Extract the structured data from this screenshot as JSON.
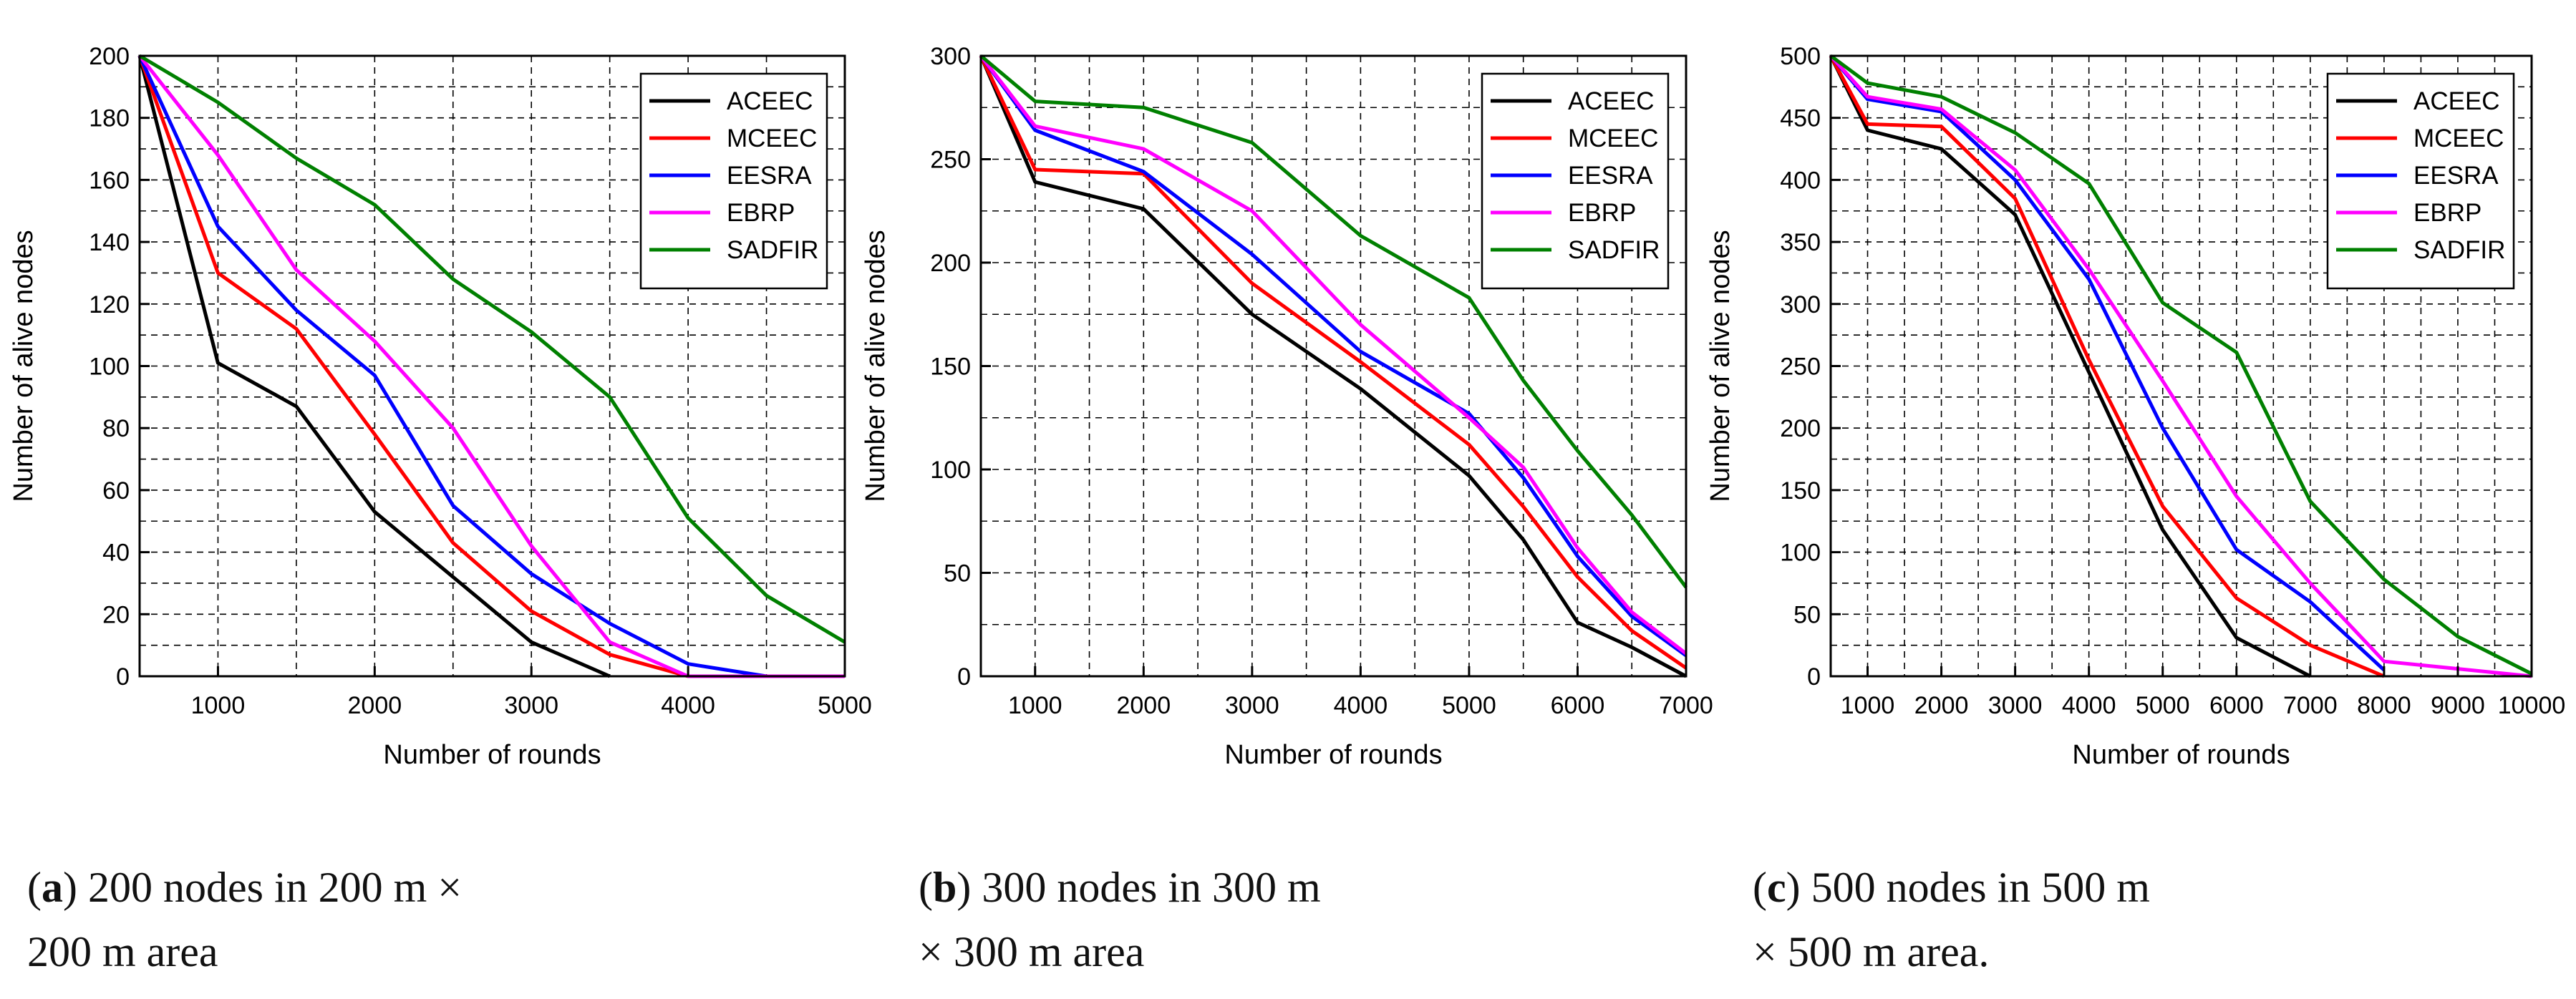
{
  "figure": {
    "panels": [
      {
        "caption": {
          "letter": "a",
          "line1": "200 nodes in 200 m ×",
          "line2": "200 m area"
        },
        "chart_data": {
          "type": "line",
          "title": "",
          "xlabel": "Number of rounds",
          "ylabel": "Number of alive nodes",
          "xlim": [
            500,
            5000
          ],
          "ylim": [
            0,
            200
          ],
          "xticks": [
            1000,
            2000,
            3000,
            4000,
            5000
          ],
          "xtick_labels": [
            "1000",
            "2000",
            "3000",
            "4000",
            "5000"
          ],
          "yticks": [
            0,
            20,
            40,
            60,
            80,
            100,
            120,
            140,
            160,
            180,
            200
          ],
          "ytick_labels": [
            "0",
            "20",
            "40",
            "60",
            "80",
            "100",
            "120",
            "140",
            "160",
            "180",
            "200"
          ],
          "grid": true,
          "legend_position": "top-right",
          "series": [
            {
              "name": "ACEEC",
              "color": "#000000",
              "x": [
                500,
                1000,
                1500,
                2000,
                2500,
                3000,
                3500
              ],
              "values": [
                200,
                101,
                87,
                53,
                32,
                11,
                0
              ]
            },
            {
              "name": "MCEEC",
              "color": "#ff0000",
              "x": [
                500,
                1000,
                1500,
                2000,
                2500,
                3000,
                3500,
                4000
              ],
              "values": [
                200,
                130,
                112,
                78,
                43,
                21,
                7,
                0
              ]
            },
            {
              "name": "EESRA",
              "color": "#0000ff",
              "x": [
                500,
                1000,
                1500,
                2000,
                2500,
                3000,
                3500,
                4000,
                4500
              ],
              "values": [
                200,
                145,
                118,
                97,
                55,
                33,
                17,
                4,
                0
              ]
            },
            {
              "name": "EBRP",
              "color": "#ff00ff",
              "x": [
                500,
                1000,
                1500,
                2000,
                2500,
                3000,
                3500,
                4000,
                4500,
                5000
              ],
              "values": [
                200,
                168,
                131,
                108,
                80,
                42,
                11,
                0,
                0,
                0
              ]
            },
            {
              "name": "SADFIR",
              "color": "#008000",
              "x": [
                500,
                1000,
                1500,
                2000,
                2500,
                3000,
                3500,
                4000,
                4500,
                5000
              ],
              "values": [
                200,
                185,
                167,
                152,
                128,
                111,
                90,
                51,
                26,
                11
              ]
            }
          ]
        }
      },
      {
        "caption": {
          "letter": "b",
          "line1": "300 nodes in 300 m",
          "line2": "× 300 m area"
        },
        "chart_data": {
          "type": "line",
          "title": "",
          "xlabel": "Number of rounds",
          "ylabel": "Number of alive nodes",
          "xlim": [
            500,
            7000
          ],
          "ylim": [
            0,
            300
          ],
          "xticks": [
            1000,
            2000,
            3000,
            4000,
            5000,
            6000,
            7000
          ],
          "xtick_labels": [
            "1000",
            "2000",
            "3000",
            "4000",
            "5000",
            "6000",
            "7000"
          ],
          "yticks": [
            0,
            50,
            100,
            150,
            200,
            250,
            300
          ],
          "ytick_labels": [
            "0",
            "50",
            "100",
            "150",
            "200",
            "250",
            "300"
          ],
          "grid": true,
          "legend_position": "top-right",
          "series": [
            {
              "name": "ACEEC",
              "color": "#000000",
              "x": [
                500,
                1000,
                2000,
                3000,
                4000,
                5000,
                5500,
                6000,
                6500,
                7000
              ],
              "values": [
                300,
                239,
                226,
                175,
                139,
                97,
                66,
                26,
                14,
                0
              ]
            },
            {
              "name": "MCEEC",
              "color": "#ff0000",
              "x": [
                500,
                1000,
                2000,
                3000,
                4000,
                5000,
                5500,
                6000,
                6500,
                7000
              ],
              "values": [
                300,
                245,
                243,
                190,
                152,
                112,
                82,
                48,
                22,
                4
              ]
            },
            {
              "name": "EESRA",
              "color": "#0000ff",
              "x": [
                500,
                1000,
                2000,
                3000,
                4000,
                5000,
                5500,
                6000,
                6500,
                7000
              ],
              "values": [
                300,
                264,
                244,
                204,
                157,
                127,
                96,
                58,
                29,
                10
              ]
            },
            {
              "name": "EBRP",
              "color": "#ff00ff",
              "x": [
                500,
                1000,
                2000,
                3000,
                4000,
                5000,
                5500,
                6000,
                6500,
                7000
              ],
              "values": [
                300,
                266,
                255,
                225,
                170,
                125,
                101,
                62,
                31,
                11
              ]
            },
            {
              "name": "SADFIR",
              "color": "#008000",
              "x": [
                500,
                1000,
                2000,
                3000,
                4000,
                5000,
                5500,
                6000,
                6500,
                7000
              ],
              "values": [
                300,
                278,
                275,
                258,
                213,
                183,
                143,
                109,
                78,
                43
              ]
            }
          ]
        }
      },
      {
        "caption": {
          "letter": "c",
          "line1": "500 nodes in 500 m",
          "line2": "× 500 m area."
        },
        "chart_data": {
          "type": "line",
          "title": "",
          "xlabel": "Number of rounds",
          "ylabel": "Number of alive nodes",
          "xlim": [
            500,
            10000
          ],
          "ylim": [
            0,
            500
          ],
          "xticks": [
            1000,
            2000,
            3000,
            4000,
            5000,
            6000,
            7000,
            8000,
            9000,
            10000
          ],
          "xtick_labels": [
            "1000",
            "2000",
            "3000",
            "4000",
            "5000",
            "6000",
            "7000",
            "8000",
            "9000",
            "10000"
          ],
          "yticks": [
            0,
            50,
            100,
            150,
            200,
            250,
            300,
            350,
            400,
            450,
            500
          ],
          "ytick_labels": [
            "0",
            "50",
            "100",
            "150",
            "200",
            "250",
            "300",
            "350",
            "400",
            "450",
            "500"
          ],
          "grid": true,
          "legend_position": "top-right",
          "series": [
            {
              "name": "ACEEC",
              "color": "#000000",
              "x": [
                500,
                1000,
                2000,
                3000,
                4000,
                5000,
                6000,
                7000
              ],
              "values": [
                500,
                440,
                425,
                372,
                245,
                118,
                31,
                0
              ]
            },
            {
              "name": "MCEEC",
              "color": "#ff0000",
              "x": [
                500,
                1000,
                2000,
                3000,
                4000,
                5000,
                6000,
                7000,
                8000
              ],
              "values": [
                500,
                445,
                443,
                385,
                255,
                137,
                63,
                25,
                0
              ]
            },
            {
              "name": "EESRA",
              "color": "#0000ff",
              "x": [
                500,
                1000,
                2000,
                3000,
                4000,
                5000,
                6000,
                7000,
                8000
              ],
              "values": [
                500,
                465,
                455,
                400,
                320,
                200,
                102,
                60,
                5
              ]
            },
            {
              "name": "EBRP",
              "color": "#ff00ff",
              "x": [
                500,
                1000,
                2000,
                3000,
                4000,
                5000,
                6000,
                7000,
                8000,
                9000,
                10000
              ],
              "values": [
                500,
                467,
                457,
                408,
                328,
                238,
                145,
                75,
                12,
                6,
                0
              ]
            },
            {
              "name": "SADFIR",
              "color": "#008000",
              "x": [
                500,
                1000,
                2000,
                3000,
                4000,
                5000,
                6000,
                7000,
                8000,
                9000,
                10000
              ],
              "values": [
                500,
                478,
                467,
                438,
                397,
                301,
                261,
                141,
                78,
                32,
                2
              ]
            }
          ]
        }
      }
    ]
  }
}
